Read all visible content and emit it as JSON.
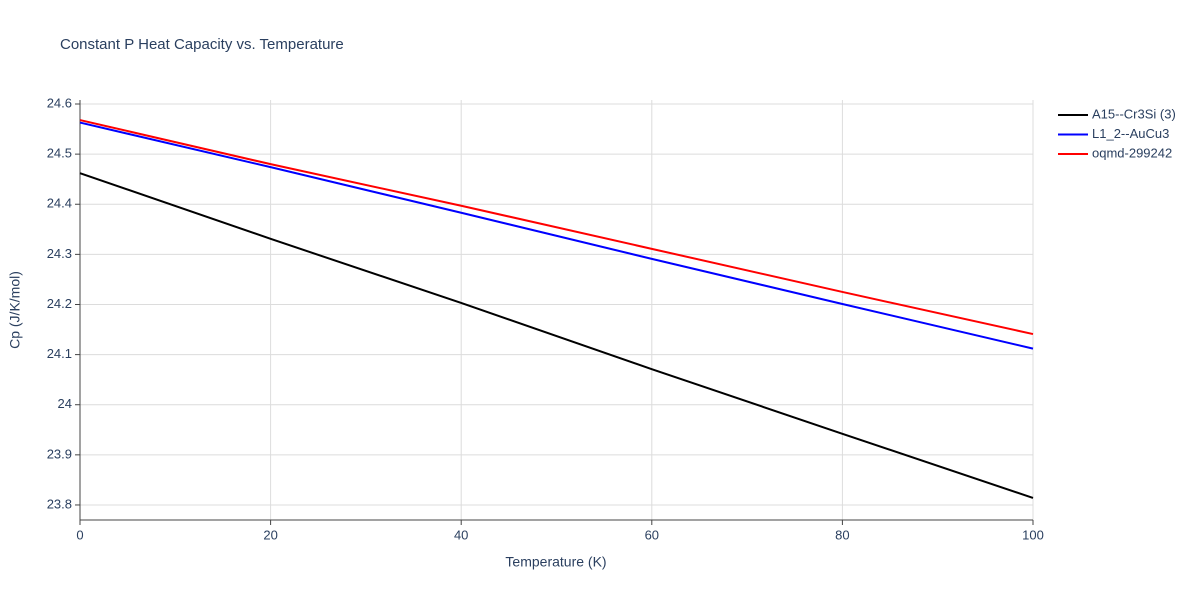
{
  "chart_data": {
    "type": "line",
    "title": "Constant P Heat Capacity vs. Temperature",
    "x_label": "Temperature (K)",
    "y_label": "Cp (J/K/mol)",
    "x": [
      0,
      20,
      40,
      60,
      80,
      100
    ],
    "series": [
      {
        "name": "A15--Cr3Si (3)",
        "color": "#000000",
        "values": [
          24.462,
          24.331,
          24.203,
          24.071,
          23.942,
          23.814
        ]
      },
      {
        "name": "L1_2--AuCu3",
        "color": "#0000ff",
        "values": [
          24.563,
          24.474,
          24.383,
          24.291,
          24.201,
          24.112
        ]
      },
      {
        "name": "oqmd-299242",
        "color": "#ff0000",
        "values": [
          24.568,
          24.48,
          24.397,
          24.311,
          24.225,
          24.141
        ]
      }
    ],
    "xlim": [
      0,
      100
    ],
    "xticks": [
      0,
      20,
      40,
      60,
      80,
      100
    ],
    "ylim": [
      23.77,
      24.608
    ],
    "yticks": [
      23.8,
      23.9,
      24,
      24.1,
      24.2,
      24.3,
      24.4,
      24.5,
      24.6
    ],
    "grid": true,
    "legend": "right"
  }
}
